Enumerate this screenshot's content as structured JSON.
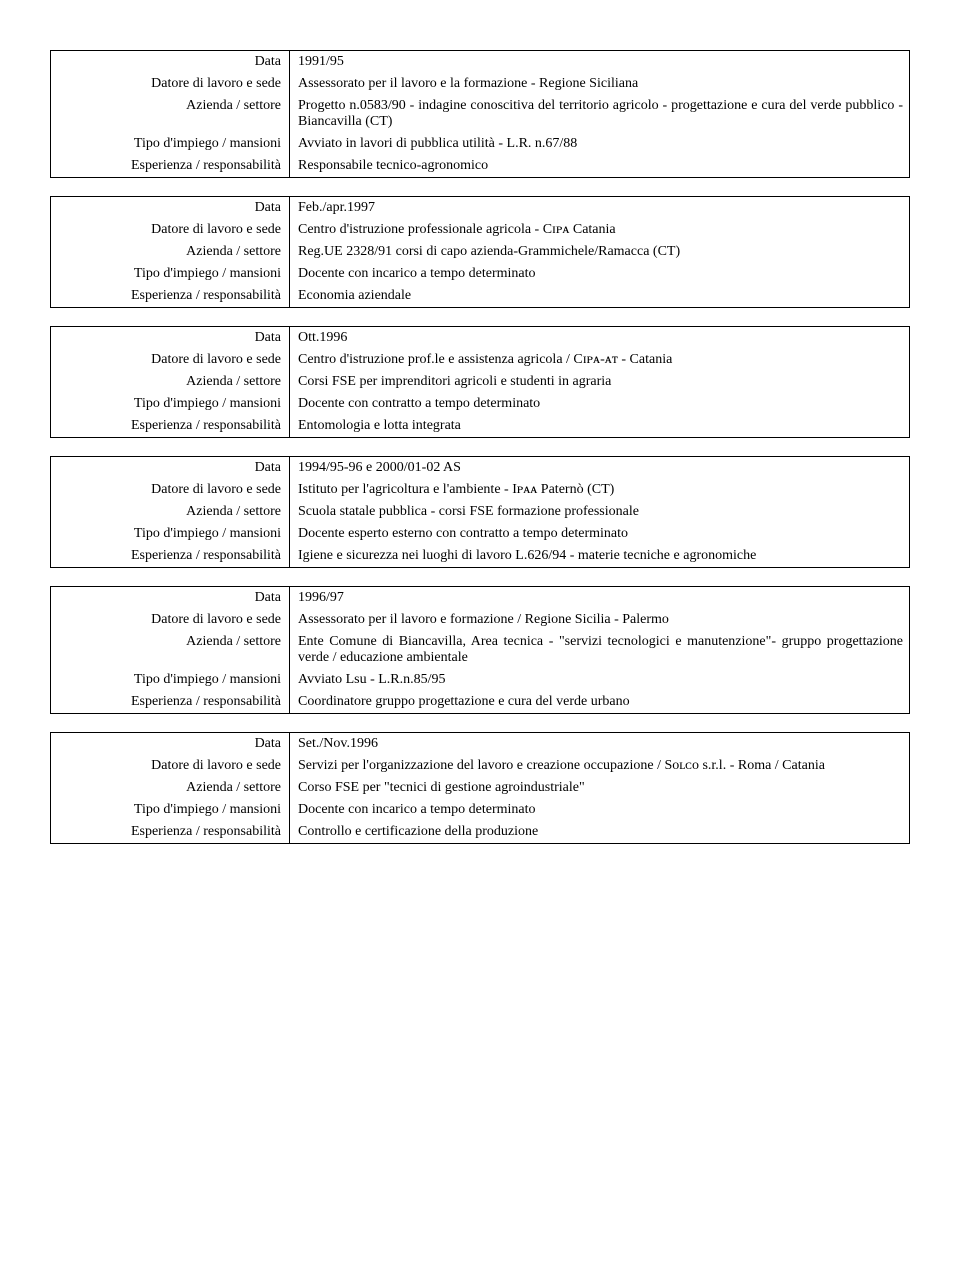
{
  "labels": {
    "data": "Data",
    "datore": "Datore di lavoro e sede",
    "azienda": "Azienda / settore",
    "tipo": "Tipo d'impiego / mansioni",
    "esperienza": "Esperienza / responsabilità"
  },
  "entries": [
    {
      "bordered": true,
      "data": "1991/95",
      "datore": "Assessorato per il lavoro e la formazione - Regione Siciliana",
      "azienda": "Progetto n.0583/90 - indagine conoscitiva del territorio agricolo - progettazione e cura del verde pubblico - Biancavilla (CT)",
      "tipo": "Avviato in lavori di pubblica utilità - L.R. n.67/88",
      "esperienza": "Responsabile tecnico-agronomico"
    },
    {
      "bordered": true,
      "data": "Feb./apr.1997",
      "datore": "Centro d'istruzione professionale agricola - Cɪᴘᴀ Catania",
      "azienda": "Reg.UE 2328/91 corsi di capo azienda-Grammichele/Ramacca (CT)",
      "tipo": "Docente con incarico a tempo determinato",
      "esperienza": "Economia aziendale"
    },
    {
      "bordered": true,
      "data": "Ott.1996",
      "datore": "Centro d'istruzione prof.le e assistenza agricola / Cɪᴘᴀ-ᴀᴛ  - Catania",
      "azienda": "Corsi FSE per imprenditori agricoli e studenti in agraria",
      "tipo": "Docente con contratto a tempo determinato",
      "esperienza": "Entomologia e lotta integrata"
    },
    {
      "bordered": true,
      "data": "1994/95-96 e 2000/01-02 AS",
      "datore": "Istituto per l'agricoltura e l'ambiente - Iᴘᴀᴀ Paternò (CT)",
      "azienda": "Scuola statale pubblica - corsi FSE formazione professionale",
      "tipo": "Docente esperto esterno con contratto a tempo determinato",
      "esperienza": "Igiene e sicurezza nei luoghi di lavoro L.626/94 - materie tecniche e agronomiche"
    },
    {
      "bordered": true,
      "data": "1996/97",
      "datore": "Assessorato per il lavoro e formazione / Regione Sicilia - Palermo",
      "azienda": "Ente Comune di Biancavilla, Area tecnica - \"servizi tecnologici e manutenzione\"- gruppo progettazione verde / educazione ambientale",
      "tipo": "Avviato Lsu - L.R.n.85/95",
      "esperienza": "Coordinatore gruppo progettazione e cura del verde urbano"
    },
    {
      "bordered": true,
      "data": "Set./Nov.1996",
      "datore": "Servizi per l'organizzazione del lavoro e creazione occupazione / Sᴏʟᴄᴏ s.r.l. - Roma / Catania",
      "azienda": "Corso FSE per \"tecnici di gestione agroindustriale\"",
      "tipo": "Docente con incarico a tempo determinato",
      "esperienza": "Controllo e certificazione della produzione"
    }
  ]
}
